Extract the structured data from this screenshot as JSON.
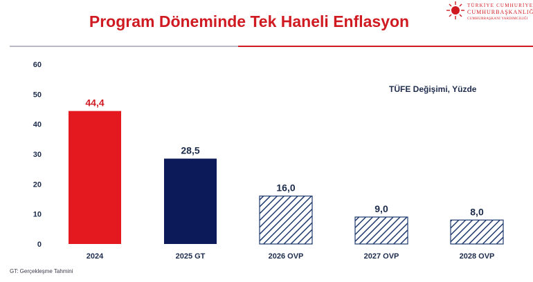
{
  "title": "Program Döneminde Tek Haneli Enflasyon",
  "logo": {
    "line1": "TÜRKİYE CUMHURİYETİ",
    "line2": "CUMHURBAŞKANLIĞI",
    "line3": "CUMHURBAŞKANI YARDIMCILIĞI"
  },
  "unit_label": "TÜFE Değişimi, Yüzde",
  "footnote": "GT: Gerçekleşme Tahmini",
  "colors": {
    "title": "#d01a21",
    "bar_2024": "#e4191f",
    "bar_2025": "#0c1a5a",
    "hatch": "#1f3a6e",
    "value_label_2024": "#d01a21",
    "value_label_other": "#1b2a4a"
  },
  "chart_data": {
    "type": "bar",
    "categories": [
      "2024",
      "2025 GT",
      "2026 OVP",
      "2027 OVP",
      "2028 OVP"
    ],
    "values": [
      44.4,
      28.5,
      16.0,
      9.0,
      8.0
    ],
    "value_labels": [
      "44,4",
      "28,5",
      "16,0",
      "9,0",
      "8,0"
    ],
    "bar_styles": [
      "solid-red",
      "solid-navy",
      "hatched",
      "hatched",
      "hatched"
    ],
    "yticks": [
      0,
      10,
      20,
      30,
      40,
      50,
      60
    ],
    "ylim": [
      0,
      60
    ],
    "grid": false,
    "legend": "none"
  }
}
